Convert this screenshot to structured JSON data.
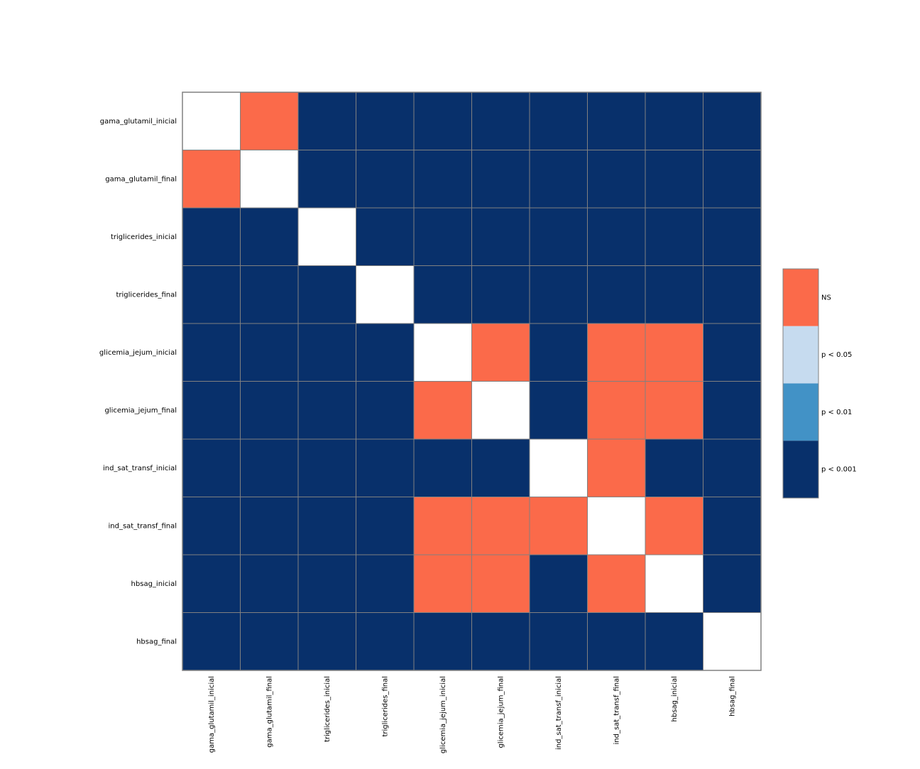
{
  "chart_data": {
    "type": "heatmap",
    "title": "",
    "xlabel": "",
    "ylabel": "",
    "rows": [
      "gama_glutamil_inicial",
      "gama_glutamil_final",
      "triglicerides_inicial",
      "triglicerides_final",
      "glicemia_jejum_inicial",
      "glicemia_jejum_final",
      "ind_sat_transf_inicial",
      "ind_sat_transf_final",
      "hbsag_inicial",
      "hbsag_final"
    ],
    "columns": [
      "gama_glutamil_inicial",
      "gama_glutamil_final",
      "triglicerides_inicial",
      "triglicerides_final",
      "glicemia_jejum_inicial",
      "glicemia_jejum_final",
      "ind_sat_transf_inicial",
      "ind_sat_transf_final",
      "hbsag_inicial",
      "hbsag_final"
    ],
    "values": [
      [
        -1,
        0,
        3,
        3,
        3,
        3,
        3,
        3,
        3,
        3
      ],
      [
        0,
        -1,
        3,
        3,
        3,
        3,
        3,
        3,
        3,
        3
      ],
      [
        3,
        3,
        -1,
        3,
        3,
        3,
        3,
        3,
        3,
        3
      ],
      [
        3,
        3,
        3,
        -1,
        3,
        3,
        3,
        3,
        3,
        3
      ],
      [
        3,
        3,
        3,
        3,
        -1,
        0,
        3,
        0,
        0,
        3
      ],
      [
        3,
        3,
        3,
        3,
        0,
        -1,
        3,
        0,
        0,
        3
      ],
      [
        3,
        3,
        3,
        3,
        3,
        3,
        -1,
        0,
        3,
        3
      ],
      [
        3,
        3,
        3,
        3,
        0,
        0,
        0,
        -1,
        0,
        3
      ],
      [
        3,
        3,
        3,
        3,
        0,
        0,
        3,
        0,
        -1,
        3
      ],
      [
        3,
        3,
        3,
        3,
        3,
        3,
        3,
        3,
        3,
        -1
      ]
    ],
    "legend": {
      "placement": "right",
      "items": [
        {
          "level": 0,
          "label": "NS",
          "color": "#fb6a4a"
        },
        {
          "level": 1,
          "label": "p < 0.05",
          "color": "#c6dbef"
        },
        {
          "level": 2,
          "label": "p < 0.01",
          "color": "#4292c6"
        },
        {
          "level": 3,
          "label": "p < 0.001",
          "color": "#08306b"
        }
      ]
    },
    "diagonal_color": "#ffffff",
    "grid_color": "#808080"
  }
}
